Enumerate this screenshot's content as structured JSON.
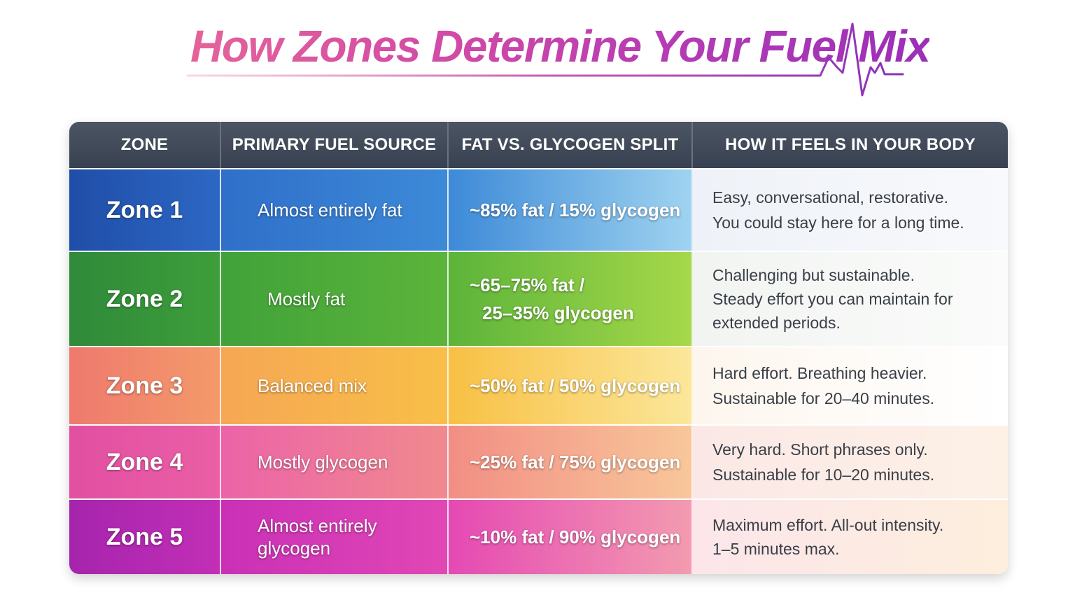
{
  "title": "How Zones Determine Your Fuel Mix",
  "colors": {
    "title_gradient_start": "#e4639a",
    "title_gradient_end": "#9b2fb8",
    "header_bg": "#3f4652",
    "zone1": "#2d67c4",
    "zone2": "#3e9e3a",
    "zone3": "#f49a6a",
    "zone4": "#e24fa2",
    "zone5": "#a624ad"
  },
  "icons": {
    "title_decoration": "heartbeat-line-icon"
  },
  "table": {
    "headers": [
      "ZONE",
      "PRIMARY FUEL SOURCE",
      "FAT VS. GLYCOGEN SPLIT",
      "HOW IT FEELS IN YOUR BODY"
    ],
    "rows": [
      {
        "zone": "Zone 1",
        "fuel": [
          "Almost entirely fat"
        ],
        "split": [
          "~85% fat / 15% glycogen"
        ],
        "feel": [
          "Easy, conversational, restorative.",
          "You could stay here for a long time."
        ]
      },
      {
        "zone": "Zone 2",
        "fuel": [
          "Mostly fat"
        ],
        "split": [
          "~65–75% fat /",
          "25–35% glycogen"
        ],
        "feel": [
          "Challenging but sustainable.",
          "Steady effort you can maintain for",
          "extended periods."
        ]
      },
      {
        "zone": "Zone 3",
        "fuel": [
          "Balanced mix"
        ],
        "split": [
          "~50% fat / 50% glycogen"
        ],
        "feel": [
          "Hard effort. Breathing heavier.",
          "Sustainable for 20–40 minutes."
        ]
      },
      {
        "zone": "Zone 4",
        "fuel": [
          "Mostly glycogen"
        ],
        "split": [
          "~25% fat / 75% glycogen"
        ],
        "feel": [
          "Very hard. Short phrases only.",
          "Sustainable for 10–20 minutes."
        ]
      },
      {
        "zone": "Zone 5",
        "fuel": [
          "Almost entirely",
          "glycogen"
        ],
        "split": [
          "~10% fat / 90% glycogen"
        ],
        "feel": [
          "Maximum effort. All-out intensity.",
          "1–5 minutes max."
        ]
      }
    ]
  }
}
